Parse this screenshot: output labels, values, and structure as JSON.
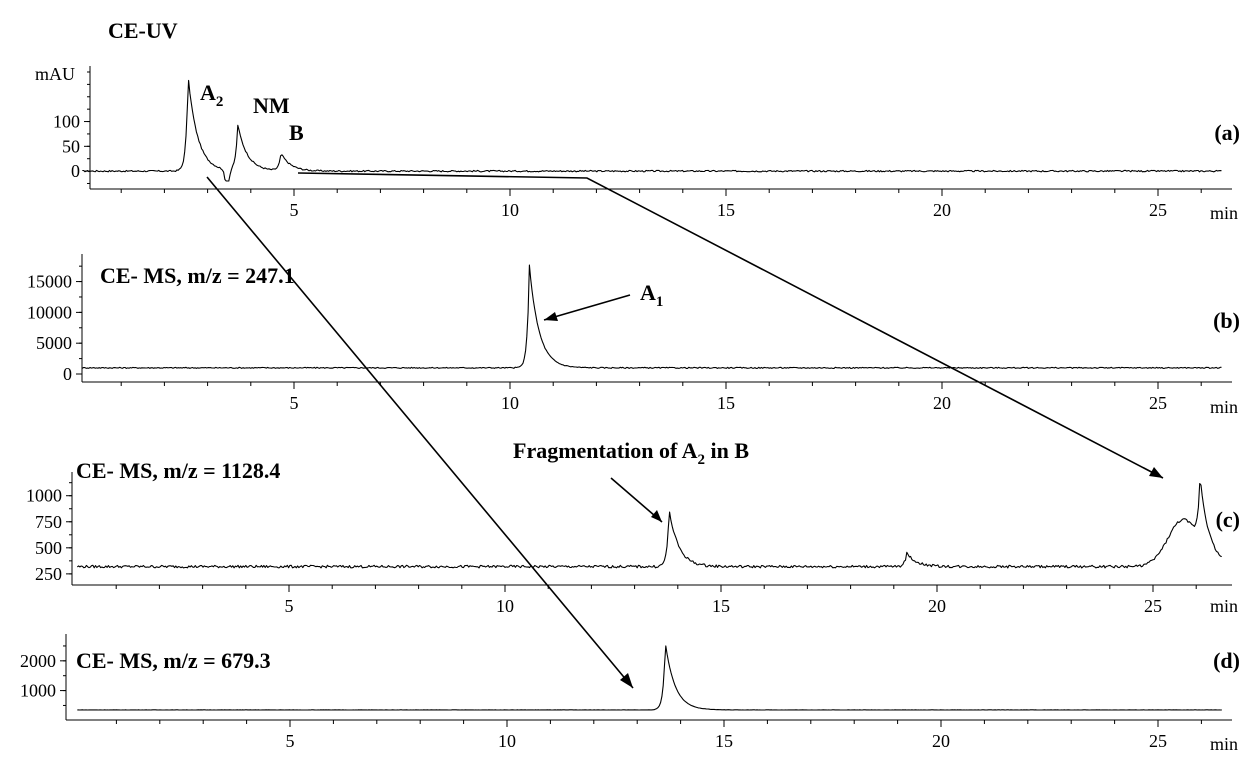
{
  "chart_data": [
    {
      "type": "line",
      "panel": "(a)",
      "title": "CE-UV",
      "ylabel": "mAU",
      "xunit": "min",
      "xlim": [
        0,
        27
      ],
      "ylim": [
        -20,
        200
      ],
      "xticks": [
        5,
        10,
        15,
        20,
        25
      ],
      "yticks": [
        0,
        50,
        100
      ],
      "peak_labels": [
        {
          "text": "A",
          "sub": "2",
          "x": 2.6
        },
        {
          "text": "NM",
          "x": 3.6
        },
        {
          "text": "B",
          "x": 4.7
        }
      ],
      "peaks": [
        {
          "x": 2.55,
          "y": 190
        },
        {
          "x": 3.7,
          "y": 92
        },
        {
          "x": 4.7,
          "y": 35
        }
      ],
      "baseline": 0
    },
    {
      "type": "line",
      "panel": "(b)",
      "title": "CE- MS, m/z =  247.1",
      "xunit": "min",
      "xlim": [
        0,
        27
      ],
      "ylim": [
        0,
        18500
      ],
      "xticks": [
        5,
        10,
        15,
        20,
        25
      ],
      "yticks": [
        0,
        5000,
        10000,
        15000
      ],
      "annotations": [
        {
          "text": "A",
          "sub": "1",
          "x": 10.5
        }
      ],
      "peaks": [
        {
          "x": 10.45,
          "y": 17600
        }
      ],
      "baseline": 1000
    },
    {
      "type": "line",
      "panel": "(c)",
      "title": "CE- MS, m/z = 1128.4",
      "xunit": "min",
      "xlim": [
        0,
        27
      ],
      "ylim": [
        220,
        1170
      ],
      "xticks": [
        5,
        10,
        15,
        20,
        25
      ],
      "yticks": [
        250,
        500,
        750,
        1000
      ],
      "annotations": [
        {
          "text": "Fragmentation of A",
          "sub": "2",
          "tail": " in B",
          "x": 13.8
        }
      ],
      "peaks": [
        {
          "x": 13.8,
          "y": 860
        },
        {
          "x": 19.3,
          "y": 450
        },
        {
          "x": 26.1,
          "y": 1140
        }
      ],
      "baseline": 320
    },
    {
      "type": "line",
      "panel": "(d)",
      "title": "CE- MS, m/z = 679.3",
      "xunit": "min",
      "xlim": [
        0,
        27
      ],
      "ylim": [
        280,
        2700
      ],
      "xticks": [
        5,
        10,
        15,
        20,
        25
      ],
      "yticks": [
        1000,
        2000
      ],
      "peaks": [
        {
          "x": 13.65,
          "y": 2600
        }
      ],
      "baseline": 350
    }
  ]
}
